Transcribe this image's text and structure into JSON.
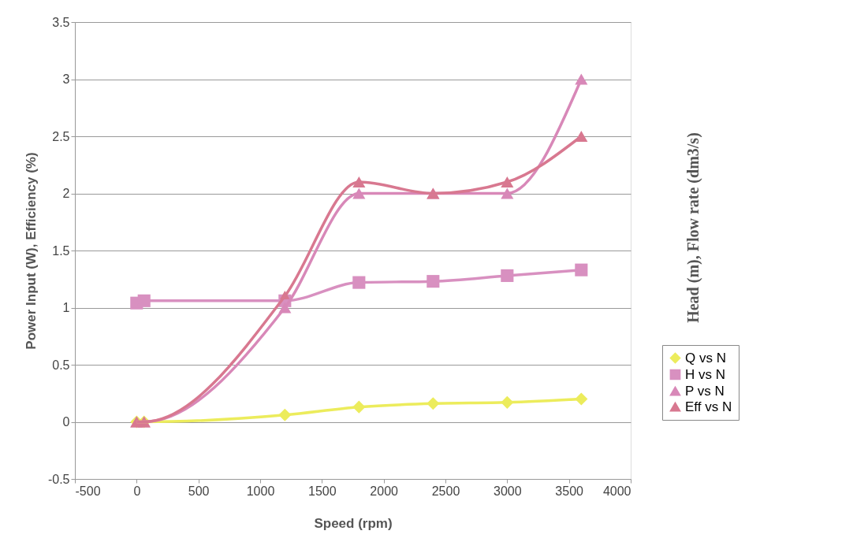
{
  "chart_data": {
    "type": "line",
    "xlabel": "Speed (rpm)",
    "ylabel": "Power Input (W), Efficiency (%)",
    "y2label": "Head (m), Flow rate (dm3/s)",
    "xlim": [
      -500,
      4000
    ],
    "xticks": [
      -500,
      0,
      500,
      1000,
      1500,
      2000,
      2500,
      3000,
      3500,
      4000
    ],
    "ylim": [
      -0.5,
      3.5
    ],
    "yticks": [
      -0.5,
      0,
      0.5,
      1,
      1.5,
      2,
      2.5,
      3,
      3.5
    ],
    "grid": "y",
    "legend": "right",
    "line_style": "solid",
    "series": [
      {
        "name": "Q vs N",
        "color": "#ecec5c",
        "marker": "diamond",
        "x": [
          0,
          60,
          1200,
          1800,
          2400,
          3000,
          3600
        ],
        "values": [
          0,
          0,
          0.06,
          0.13,
          0.16,
          0.17,
          0.2
        ]
      },
      {
        "name": "H vs N",
        "color": "#d890c0",
        "marker": "square",
        "x": [
          0,
          60,
          1200,
          1800,
          2400,
          3000,
          3600
        ],
        "values": [
          1.04,
          1.06,
          1.06,
          1.22,
          1.23,
          1.28,
          1.33
        ]
      },
      {
        "name": "P vs N",
        "color": "#d888b8",
        "marker": "triangle",
        "x": [
          0,
          60,
          1200,
          1800,
          2400,
          3000,
          3600
        ],
        "values": [
          0,
          0,
          1.0,
          2.0,
          2.0,
          2.0,
          3.0
        ]
      },
      {
        "name": "Eff vs N",
        "color": "#d87890",
        "marker": "triangle",
        "x": [
          0,
          60,
          1200,
          1800,
          2400,
          3000,
          3600
        ],
        "values": [
          0,
          0,
          1.1,
          2.1,
          2.0,
          2.1,
          2.5
        ]
      }
    ]
  }
}
